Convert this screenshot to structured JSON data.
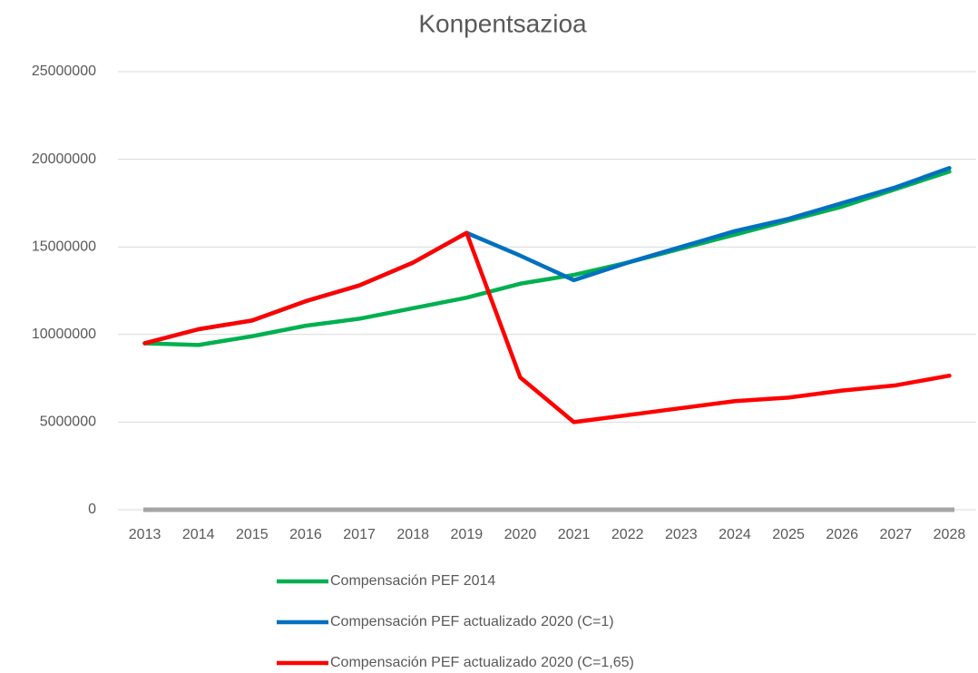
{
  "chart_data": {
    "type": "line",
    "title": "Konpentsazioa",
    "categories": [
      "2013",
      "2014",
      "2015",
      "2016",
      "2017",
      "2018",
      "2019",
      "2020",
      "2021",
      "2022",
      "2023",
      "2024",
      "2025",
      "2026",
      "2027",
      "2028"
    ],
    "series": [
      {
        "name": "Compensación PEF 2014",
        "color": "#00b050",
        "values": [
          9500000,
          9400000,
          9900000,
          10500000,
          10900000,
          11500000,
          12100000,
          12900000,
          13400000,
          14100000,
          14900000,
          15700000,
          16500000,
          17300000,
          18300000,
          19300000
        ]
      },
      {
        "name": "Compensación PEF actualizado 2020 (C=1)",
        "color": "#0070c0",
        "values": [
          9500000,
          10300000,
          10800000,
          11900000,
          12800000,
          14100000,
          15800000,
          14500000,
          13100000,
          14100000,
          15000000,
          15900000,
          16600000,
          17500000,
          18400000,
          19500000
        ]
      },
      {
        "name": "Compensación PEF actualizado 2020 (C=1,65)",
        "color": "#ff0000",
        "values": [
          9500000,
          10300000,
          10800000,
          11900000,
          12800000,
          14100000,
          15800000,
          7550000,
          5000000,
          5400000,
          5800000,
          6200000,
          6400000,
          6800000,
          7100000,
          7650000
        ]
      }
    ],
    "ylim": [
      0,
      25000000
    ],
    "yticks": [
      0,
      5000000,
      10000000,
      15000000,
      20000000,
      25000000
    ],
    "grid": true,
    "legend": "bottom"
  }
}
